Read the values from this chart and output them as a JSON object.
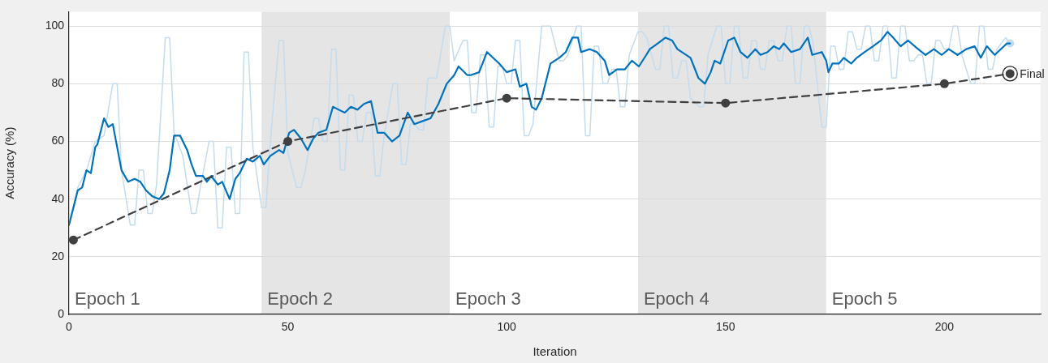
{
  "chart_data": {
    "type": "line",
    "xlabel": "Iteration",
    "ylabel": "Accuracy (%)",
    "xlim": [
      0,
      222
    ],
    "xticks": [
      0,
      50,
      100,
      150,
      200
    ],
    "ylim": [
      0,
      105
    ],
    "yticks": [
      0,
      20,
      40,
      60,
      80,
      100
    ],
    "grid": "y",
    "marker": "none",
    "line_style": "solid",
    "bands": [
      {
        "axis": "x",
        "from": 44,
        "to": 87,
        "label": "Epoch 2",
        "color": "#e5e5e5"
      },
      {
        "axis": "x",
        "from": 130,
        "to": 173,
        "label": "Epoch 4",
        "color": "#e5e5e5"
      }
    ],
    "annotations": [
      "Epoch 1",
      "Epoch 3",
      "Epoch 5",
      {
        "text": "Final",
        "x": 215,
        "y": 83.5
      }
    ],
    "series": [
      {
        "color": "#c3dcef",
        "x": [
          0,
          2,
          4,
          6,
          8,
          10,
          11,
          12,
          14,
          15,
          16,
          17,
          18,
          19,
          20,
          22,
          23,
          24,
          26,
          28,
          29,
          30,
          32,
          33,
          34,
          35,
          36,
          37,
          38,
          39,
          40,
          41,
          42,
          44,
          45,
          46,
          48,
          49,
          50,
          52,
          53,
          54,
          56,
          57,
          58,
          59,
          60,
          61,
          62,
          63,
          64,
          65,
          66,
          67,
          68,
          69,
          70,
          71,
          72,
          74,
          75,
          76,
          77,
          78,
          79,
          80,
          81,
          82,
          84,
          86,
          87,
          88,
          90,
          91,
          92,
          93,
          94,
          95,
          96,
          97,
          98,
          99,
          100,
          101,
          102,
          103,
          104,
          105,
          106,
          108,
          110,
          112,
          113,
          114,
          116,
          117,
          118,
          119,
          120,
          121,
          122,
          123,
          124,
          125,
          126,
          127,
          128,
          130,
          131,
          132,
          134,
          135,
          136,
          137,
          138,
          139,
          140,
          141,
          142,
          144,
          145,
          146,
          148,
          149,
          150,
          151,
          152,
          153,
          154,
          155,
          156,
          157,
          158,
          159,
          160,
          161,
          162,
          163,
          164,
          165,
          166,
          167,
          168,
          169,
          170,
          172,
          173,
          174,
          175,
          176,
          177,
          178,
          179,
          180,
          181,
          182,
          183,
          184,
          185,
          186,
          187,
          188,
          189,
          190,
          191,
          192,
          193,
          194,
          195,
          196,
          197,
          198,
          199,
          200,
          201,
          202,
          203,
          204,
          206,
          207,
          208,
          209,
          210,
          211,
          212,
          214,
          215
        ],
        "values": [
          31,
          44,
          50,
          60,
          62,
          80,
          80,
          50,
          31,
          31,
          50,
          50,
          35,
          35,
          45,
          96,
          96,
          63,
          55,
          35,
          35,
          44,
          60,
          60,
          30,
          30,
          58,
          58,
          35,
          35,
          91,
          91,
          58,
          37,
          37,
          60,
          95,
          95,
          56,
          44,
          44,
          50,
          68,
          68,
          60,
          60,
          92,
          92,
          50,
          50,
          76,
          76,
          60,
          60,
          70,
          70,
          48,
          48,
          62,
          80,
          80,
          52,
          52,
          66,
          66,
          64,
          64,
          82,
          82,
          100,
          100,
          88,
          95,
          95,
          70,
          70,
          90,
          90,
          65,
          65,
          86,
          86,
          80,
          80,
          95,
          95,
          62,
          62,
          66,
          100,
          100,
          88,
          88,
          90,
          100,
          100,
          62,
          62,
          93,
          93,
          80,
          80,
          85,
          85,
          72,
          72,
          90,
          98,
          98,
          96,
          85,
          85,
          100,
          100,
          82,
          82,
          88,
          88,
          75,
          72,
          72,
          90,
          100,
          100,
          80,
          80,
          100,
          100,
          82,
          82,
          95,
          95,
          85,
          85,
          95,
          95,
          88,
          88,
          100,
          100,
          80,
          80,
          100,
          100,
          94,
          65,
          65,
          93,
          93,
          85,
          85,
          98,
          98,
          92,
          92,
          100,
          100,
          88,
          88,
          100,
          100,
          82,
          82,
          100,
          100,
          88,
          88,
          90,
          90,
          80,
          80,
          95,
          95,
          92,
          92,
          100,
          100,
          90,
          80,
          80,
          100,
          100,
          85,
          85,
          92,
          96,
          94
        ]
      },
      {
        "color": "#0072bd",
        "x": [
          0,
          2,
          3,
          4,
          5,
          6,
          6.5,
          8,
          9,
          10,
          11,
          12,
          13.5,
          15,
          16.3,
          17.6,
          19,
          20.6,
          21.7,
          23,
          24,
          25.4,
          27,
          28,
          29,
          30.6,
          31.5,
          32.5,
          34,
          35,
          36.7,
          38,
          39,
          40.6,
          42,
          43.6,
          44.5,
          46,
          48,
          49,
          50.3,
          51.4,
          53,
          54.5,
          55.8,
          57,
          58.8,
          60.3,
          61.6,
          63,
          64.4,
          65.9,
          67.4,
          69,
          70.5,
          72,
          73.8,
          75.5,
          77.4,
          78.9,
          80.7,
          82.6,
          84.4,
          86.3,
          88,
          89,
          91,
          91.8,
          93.7,
          95.5,
          98.3,
          100,
          102,
          103,
          104.5,
          105.7,
          106.7,
          108,
          110,
          112,
          113.5,
          115,
          116.3,
          117,
          119,
          120.6,
          122.4,
          123.4,
          125.2,
          127,
          128.6,
          130.2,
          131.9,
          132.7,
          134.5,
          136.3,
          137.8,
          139,
          142,
          143.8,
          145.3,
          146.6,
          147.5,
          148.8,
          150.6,
          152,
          153.4,
          155,
          156.8,
          158,
          159.6,
          161,
          162.3,
          163.3,
          165,
          167,
          168.8,
          169.8,
          172,
          173,
          173.5,
          174.4,
          175.9,
          177,
          178.7,
          180,
          181.8,
          183.7,
          185.5,
          187,
          188.3,
          190,
          191.7,
          194,
          195.7,
          197.6,
          199.4,
          201,
          203,
          205,
          206.9,
          208.3,
          209.7,
          211.5,
          214.3,
          215
        ],
        "values": [
          31,
          43,
          44,
          50,
          49,
          58,
          59,
          68,
          65,
          66,
          58,
          50,
          46,
          47,
          46,
          43,
          41,
          40,
          42,
          50,
          62,
          62,
          57,
          52,
          48,
          48,
          46,
          48,
          45,
          46,
          40,
          47,
          49,
          54,
          53,
          55,
          52,
          55,
          57,
          56,
          63,
          64,
          61,
          57,
          61,
          63,
          64,
          72,
          71,
          70,
          72,
          71,
          73,
          74,
          63,
          63,
          60,
          62,
          70,
          66,
          67,
          68,
          73,
          80,
          83,
          86,
          83,
          83,
          84,
          91,
          87,
          84,
          85,
          79,
          80,
          72,
          71,
          75,
          87,
          89,
          91,
          96,
          96,
          91,
          92,
          91,
          88,
          83,
          85,
          85,
          88,
          86,
          90,
          92,
          94,
          96,
          95,
          92,
          89,
          82,
          80,
          84,
          88,
          87,
          95,
          96,
          91,
          89,
          92,
          90,
          91,
          93,
          92,
          94,
          91,
          92,
          96,
          90,
          91,
          88,
          84,
          87,
          87,
          89,
          87,
          89,
          91,
          93,
          95,
          98,
          96,
          93,
          95,
          92,
          90,
          92,
          90,
          92,
          90,
          92,
          93,
          89,
          93,
          90,
          94,
          94
        ]
      },
      {
        "color": "#404040",
        "line_style": "dashed",
        "marker": "circle",
        "x": [
          1,
          50,
          100,
          150,
          200,
          215
        ],
        "values": [
          25.8,
          60,
          75,
          73.3,
          80,
          83.5
        ]
      }
    ]
  }
}
